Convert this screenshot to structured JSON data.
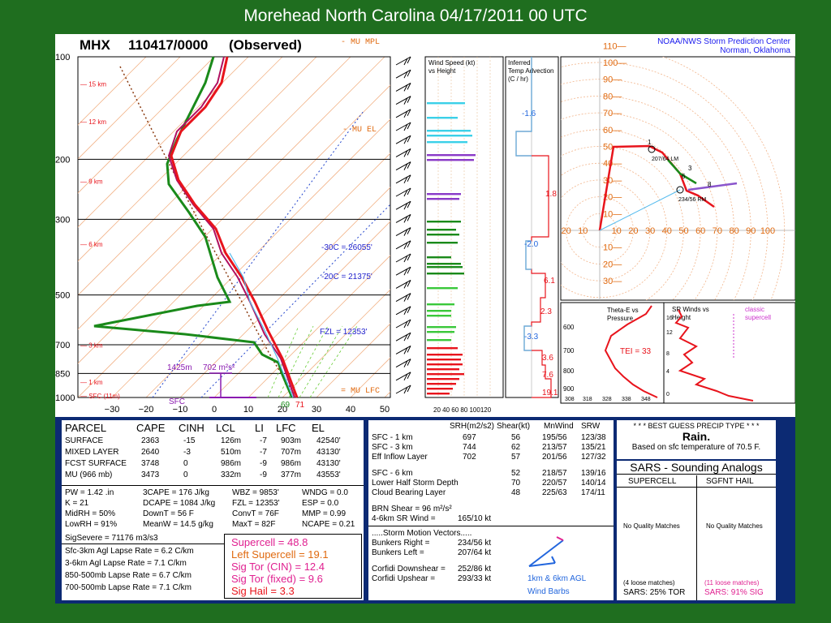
{
  "slide_title": "Morehead North Carolina 04/17/2011 00 UTC",
  "header": {
    "station": "MHX",
    "datetime": "110417/0000",
    "observed": "(Observed)",
    "mu_mpl": "- MU MPL",
    "mu_el": "- MU EL",
    "mu_lfc": "= MU LFC",
    "center_line1": "NOAA/NWS Storm Prediction Center",
    "center_line2": "Norman, Oklahoma"
  },
  "skewt": {
    "pressure_labels": [
      "100",
      "200",
      "300",
      "500",
      "700",
      "850",
      "1000"
    ],
    "height_labels": [
      "15 km",
      "12 km",
      "9 km",
      "6 km",
      "3 km",
      "1 km",
      "SFC (11m)"
    ],
    "temp_ticks": [
      "−30",
      "−20",
      "−10",
      "0",
      "10",
      "20",
      "30",
      "40",
      "50"
    ],
    "annotations": {
      "m30c": "-30C = 26055'",
      "m20c": "-20C = 21375'",
      "fzl": "FZL = 12353'",
      "eff_inflow": "1425m",
      "srh": "702 m²s²",
      "sfc": "SFC",
      "sfc_td": "69",
      "sfc_t": "71"
    }
  },
  "wind_panel": {
    "title_line1": "Wind Speed (kt)",
    "title_line2": "vs Height",
    "ticks": "20 40 60 80 100120"
  },
  "advection_panel": {
    "title_line1": "Inferred",
    "title_line2": "Temp Advection",
    "title_line3": "(C / hr)",
    "values": [
      "-1.6",
      "1.8",
      "-2.0",
      "6.1",
      "2.3",
      "-3.3",
      "3.6",
      "7.6",
      "19.1"
    ]
  },
  "hodograph": {
    "y_labels": [
      "110",
      "100",
      "90",
      "80",
      "70",
      "60",
      "50",
      "40",
      "30",
      "20",
      "10",
      "10",
      "20",
      "30"
    ],
    "x_labels": [
      "20",
      "10",
      "10",
      "20",
      "30",
      "40",
      "50",
      "60",
      "70",
      "80",
      "90",
      "100"
    ],
    "storm_left": "207/64 LM",
    "storm_right": "234/56 RM",
    "points": [
      "1",
      "3",
      "6",
      "8"
    ]
  },
  "theta_panel": {
    "title_line1": "Theta-E vs",
    "title_line2": "Pressure",
    "tei": "TEI = 33",
    "p_labels": [
      "600",
      "700",
      "800",
      "900"
    ],
    "x_labels": [
      "308",
      "318",
      "328",
      "338",
      "348"
    ]
  },
  "sr_panel": {
    "title_line1": "SR Winds vs",
    "title_line2": "Height",
    "classic_line1": "classic",
    "classic_line2": "supercell",
    "h_labels": [
      "16",
      "12",
      "8",
      "4",
      "0"
    ]
  },
  "parcel": {
    "headers": [
      "PARCEL",
      "CAPE",
      "CINH",
      "LCL",
      "LI",
      "LFC",
      "EL"
    ],
    "rows": [
      [
        "SURFACE",
        "2363",
        "-15",
        "126m",
        "-7",
        "903m",
        "42540'"
      ],
      [
        "MIXED LAYER",
        "2640",
        "-3",
        "510m",
        "-7",
        "707m",
        "43130'"
      ],
      [
        "FCST SURFACE",
        "3748",
        "0",
        "986m",
        "-9",
        "986m",
        "43130'"
      ],
      [
        "MU   (966 mb)",
        "3473",
        "0",
        "332m",
        "-9",
        "377m",
        "43553'"
      ]
    ],
    "indices": [
      [
        "PW = 1.42 .in",
        "3CAPE = 176 J/kg",
        "WBZ = 9853'",
        "WNDG = 0.0"
      ],
      [
        "K = 21",
        "DCAPE = 1084 J/kg",
        "FZL = 12353'",
        "ESP = 0.0"
      ],
      [
        "MidRH = 50%",
        "DownT = 56 F",
        "ConvT = 76F",
        "MMP = 0.99"
      ],
      [
        "LowRH = 91%",
        "MeanW = 14.5 g/kg",
        "MaxT = 82F",
        "NCAPE = 0.21"
      ]
    ],
    "sigsevere": "SigSevere = 71176 m3/s3",
    "lapse": [
      "Sfc-3km Agl Lapse Rate =   6.2 C/km",
      "3-6km Agl Lapse Rate =   7.1 C/km",
      "850-500mb Lapse Rate =   6.7 C/km",
      "700-500mb Lapse Rate =   7.1 C/km"
    ],
    "supercell": "Supercell = 48.8",
    "left_supercell": "Left Supercell = 19.1",
    "sigtor_cin": "Sig Tor (CIN) = 12.4",
    "sigtor_fixed": "Sig Tor (fixed) = 9.6",
    "sighail": "Sig Hail = 3.3"
  },
  "kinematic": {
    "headers": [
      "SRH(m2/s2)",
      "Shear(kt)",
      "MnWind",
      "SRW"
    ],
    "rows": [
      [
        "SFC - 1 km",
        "697",
        "56",
        "195/56",
        "123/38"
      ],
      [
        "SFC - 3 km",
        "744",
        "62",
        "213/57",
        "135/21"
      ],
      [
        "Eff Inflow Layer",
        "702",
        "57",
        "201/56",
        "127/32"
      ],
      [
        "SFC - 6 km",
        "",
        "52",
        "218/57",
        "139/16"
      ],
      [
        "Lower Half Storm Depth",
        "",
        "70",
        "220/57",
        "140/14"
      ],
      [
        "Cloud Bearing Layer",
        "",
        "48",
        "225/63",
        "174/11"
      ]
    ],
    "brn": "BRN Shear =  96 m²/s²",
    "srwind": "4-6km SR Wind =",
    "srwind_val": "165/10 kt",
    "motion_title": ".....Storm Motion Vectors.....",
    "bunkers_right": "Bunkers Right =",
    "bunkers_right_val": "234/56 kt",
    "bunkers_left": "Bunkers Left =",
    "bunkers_left_val": "207/64 kt",
    "corfidi_down": "Corfidi Downshear =",
    "corfidi_down_val": "252/86 kt",
    "corfidi_up": "Corfidi Upshear =",
    "corfidi_up_val": "293/33 kt",
    "barb_caption1": "1km & 6km AGL",
    "barb_caption2": "Wind Barbs"
  },
  "precip": {
    "title": "* * * BEST GUESS PRECIP TYPE * * *",
    "type": "Rain.",
    "basis": "Based on sfc temperature of 70.5 F."
  },
  "sars": {
    "title": "SARS - Sounding Analogs",
    "col1": "SUPERCELL",
    "col2": "SGFNT HAIL",
    "nomatch1": "No Quality Matches",
    "nomatch2": "No Quality Matches",
    "loose1": "(4 loose matches)",
    "loose2": "(11 loose matches)",
    "sars1": "SARS:  25% TOR",
    "sars2": "SARS:  91% SIG"
  },
  "chart_data": {
    "type": "line",
    "title": "MHX 110417/0000 (Observed)",
    "pressure_levels_mb": [
      1000,
      850,
      700,
      500,
      300,
      200,
      100
    ],
    "temperature_profile": {
      "name": "temperature",
      "surface_F": 71
    },
    "dewpoint_profile": {
      "name": "dewpoint",
      "surface_F": 69
    },
    "temp_axis_C": [
      -30,
      -20,
      -10,
      0,
      10,
      20,
      30,
      40,
      50
    ],
    "hodograph_scale_kt": [
      10,
      20,
      30,
      40,
      50,
      60,
      70,
      80,
      90,
      100,
      110
    ],
    "inferred_temp_advection_C_per_hr": [
      -1.6,
      1.8,
      -2.0,
      6.1,
      2.3,
      -3.3,
      3.6,
      7.6,
      19.1
    ],
    "colors": {
      "temperature": "#e8141c",
      "dewpoint": "#1a8a1a",
      "virtual": "#b01060",
      "cape": "#2222cc",
      "background": "#1f6e1f"
    }
  }
}
